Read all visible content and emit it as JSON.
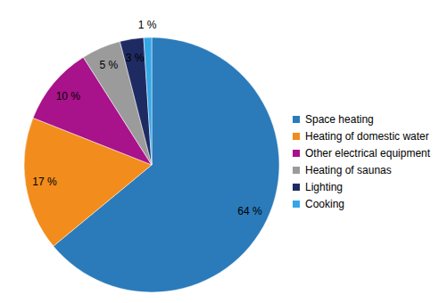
{
  "chart_data": {
    "type": "pie",
    "categories": [
      "Space heating",
      "Heating of domestic water",
      "Other electrical equipment",
      "Heating of saunas",
      "Lighting",
      "Cooking"
    ],
    "values": [
      64,
      17,
      10,
      5,
      3,
      1
    ],
    "value_labels": [
      "64 %",
      "17 %",
      "10 %",
      "5 %",
      "3 %",
      "1 %"
    ],
    "colors": [
      "#2b7bba",
      "#f28c1c",
      "#a8128a",
      "#9b9b9b",
      "#1e2b63",
      "#35a7e8"
    ],
    "data_labels": true,
    "legend": "right"
  }
}
